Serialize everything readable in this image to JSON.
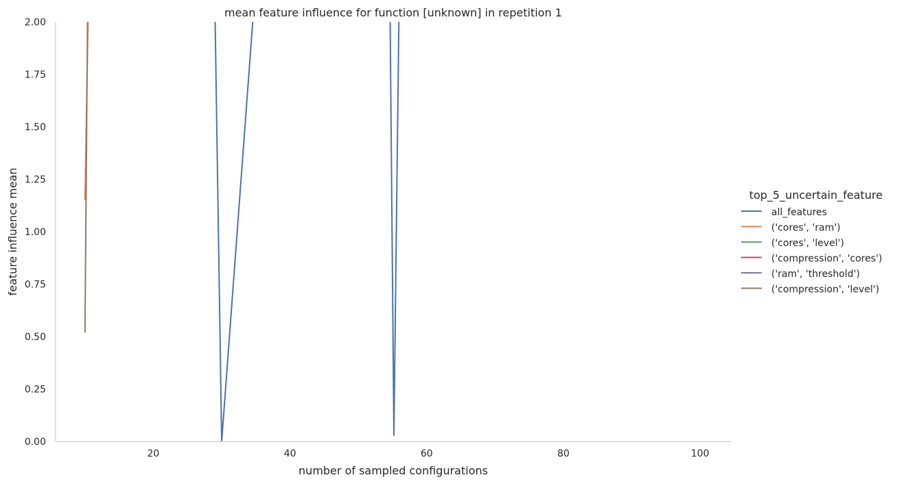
{
  "chart_data": {
    "type": "line",
    "title": "mean feature influence for function [unknown] in repetition 1",
    "xlabel": "number of sampled configurations",
    "ylabel": "feature influence mean",
    "xlim": [
      5.7,
      104.6
    ],
    "ylim": [
      0,
      2.0
    ],
    "xticks": [
      20,
      40,
      60,
      80,
      100
    ],
    "yticks": [
      0.0,
      0.25,
      0.5,
      0.75,
      1.0,
      1.25,
      1.5,
      1.75,
      2.0
    ],
    "grid": false,
    "legend": {
      "title": "top_5_uncertain_feature",
      "position": "right"
    },
    "series": [
      {
        "name": "all_features",
        "color": "#4c72b0",
        "points": [
          [
            29,
            2.1
          ],
          [
            30,
            0.0
          ],
          [
            35,
            2.2
          ],
          [
            54.6,
            2.2
          ],
          [
            55.2,
            0.03
          ],
          [
            56,
            2.2
          ]
        ]
      },
      {
        "name": "('cores', 'ram')",
        "color": "#dd8452",
        "points": [
          [
            10,
            1.15
          ],
          [
            10.5,
            2.1
          ],
          [
            11,
            2.1
          ]
        ]
      },
      {
        "name": "('cores', 'level')",
        "color": "#55a868",
        "points": []
      },
      {
        "name": "('compression', 'cores')",
        "color": "#c44e52",
        "points": []
      },
      {
        "name": "('ram', 'threshold')",
        "color": "#8172b3",
        "points": []
      },
      {
        "name": "('compression', 'level')",
        "color": "#937860",
        "points": [
          [
            10,
            0.52
          ],
          [
            10.4,
            2.1
          ]
        ]
      }
    ]
  }
}
